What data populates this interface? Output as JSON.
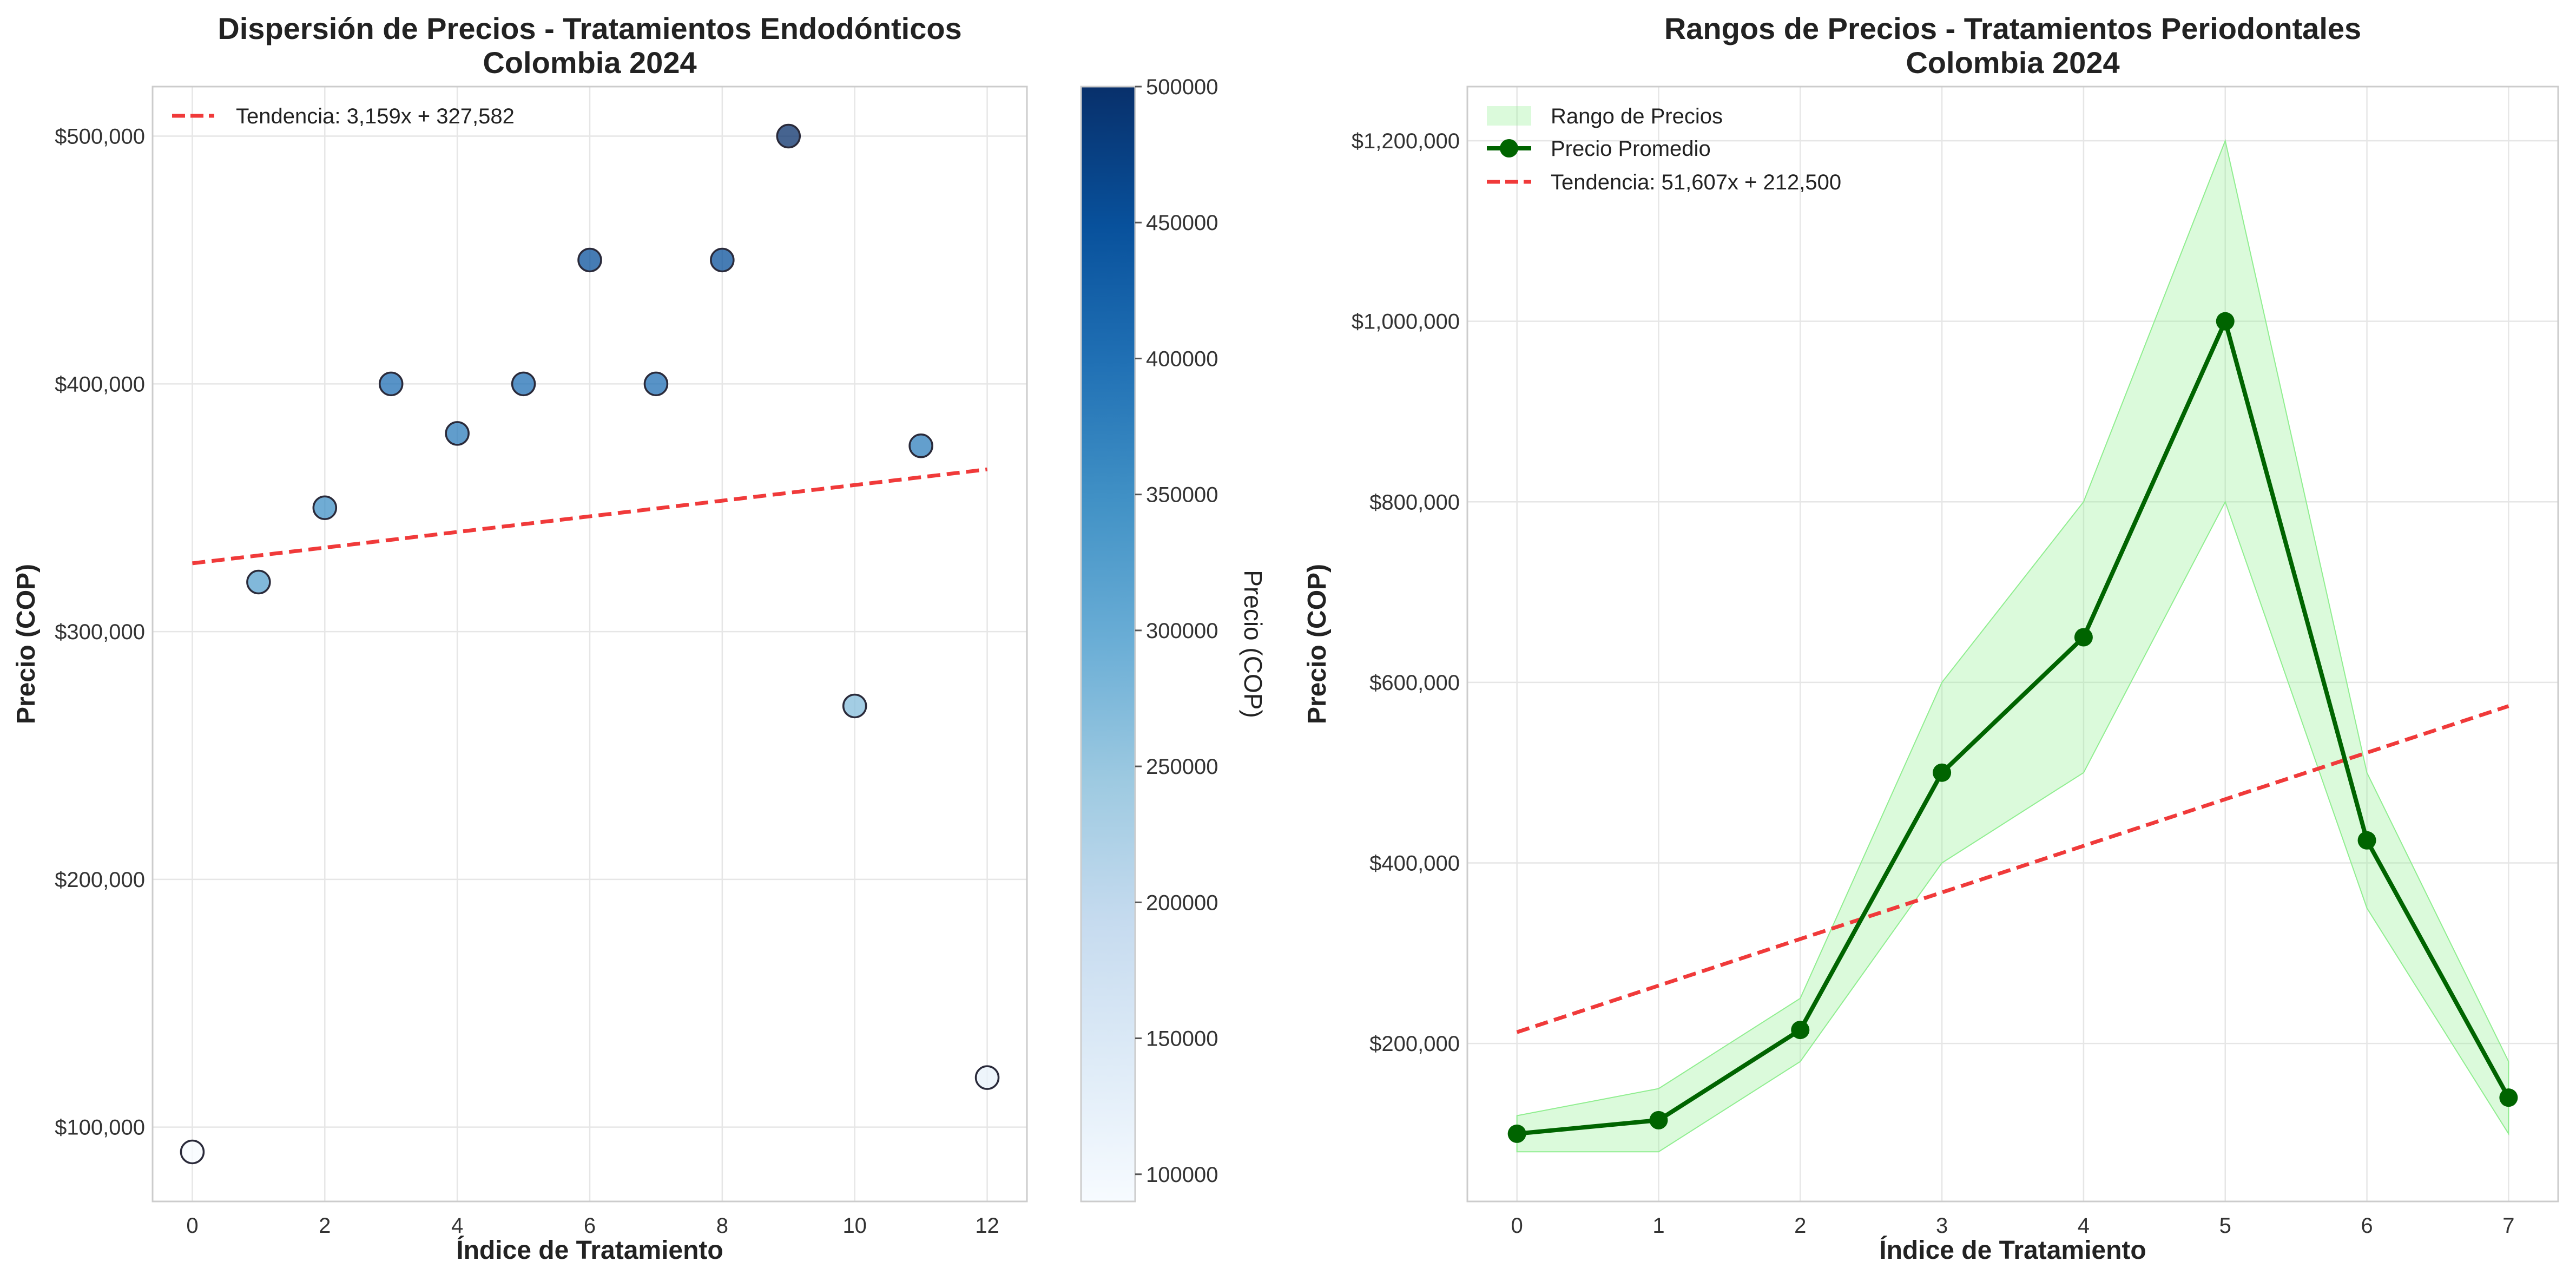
{
  "chart_data": [
    {
      "type": "scatter",
      "title_line1": "Dispersión de Precios - Tratamientos Endodónticos",
      "title_line2": "Colombia 2024",
      "xlabel": "Índice de Tratamiento",
      "ylabel": "Precio (COP)",
      "x": [
        0,
        1,
        2,
        3,
        4,
        5,
        6,
        7,
        8,
        9,
        10,
        11,
        12
      ],
      "y": [
        90000,
        320000,
        350000,
        400000,
        380000,
        400000,
        450000,
        400000,
        450000,
        500000,
        270000,
        375000,
        120000
      ],
      "xlim": [
        -0.6,
        12.6
      ],
      "ylim": [
        70000,
        520000
      ],
      "xticks": [
        0,
        2,
        4,
        6,
        8,
        10,
        12
      ],
      "xtick_labels": [
        "0",
        "2",
        "4",
        "6",
        "8",
        "10",
        "12"
      ],
      "yticks": [
        100000,
        200000,
        300000,
        400000,
        500000
      ],
      "ytick_labels": [
        "$100,000",
        "$200,000",
        "$300,000",
        "$400,000",
        "$500,000"
      ],
      "trend": {
        "slope": 3159,
        "intercept": 327582,
        "x_range": [
          0,
          12
        ]
      },
      "legend": {
        "trend_label": "Tendencia: 3,159x + 327,582",
        "position": "top-left"
      },
      "colorbar": {
        "label": "Precio (COP)",
        "range": [
          90000,
          500000
        ],
        "ticks": [
          100000,
          150000,
          200000,
          250000,
          300000,
          350000,
          400000,
          450000,
          500000
        ],
        "tick_labels": [
          "100000",
          "150000",
          "200000",
          "250000",
          "300000",
          "350000",
          "400000",
          "450000",
          "500000"
        ]
      },
      "colors": {
        "trend": "#f03a3a",
        "marker_edge": "#2a2a3a"
      }
    },
    {
      "type": "line",
      "title_line1": "Rangos de Precios - Tratamientos Periodontales",
      "title_line2": "Colombia 2024",
      "xlabel": "Índice de Tratamiento",
      "ylabel": "Precio (COP)",
      "x": [
        0,
        1,
        2,
        3,
        4,
        5,
        6,
        7
      ],
      "series": [
        {
          "name": "Precio Promedio",
          "values": [
            100000,
            115000,
            215000,
            500000,
            650000,
            1000000,
            425000,
            140000
          ]
        },
        {
          "name": "Rango de Precios (mín)",
          "values": [
            80000,
            80000,
            180000,
            400000,
            500000,
            800000,
            350000,
            100000
          ]
        },
        {
          "name": "Rango de Precios (máx)",
          "values": [
            120000,
            150000,
            250000,
            600000,
            800000,
            1200000,
            500000,
            180000
          ]
        }
      ],
      "xlim": [
        -0.35,
        7.35
      ],
      "ylim": [
        25000,
        1260000
      ],
      "xticks": [
        0,
        1,
        2,
        3,
        4,
        5,
        6,
        7
      ],
      "xtick_labels": [
        "0",
        "1",
        "2",
        "3",
        "4",
        "5",
        "6",
        "7"
      ],
      "yticks": [
        200000,
        400000,
        600000,
        800000,
        1000000,
        1200000
      ],
      "ytick_labels": [
        "$200,000",
        "$400,000",
        "$600,000",
        "$800,000",
        "$1,000,000",
        "$1,200,000"
      ],
      "trend": {
        "slope": 51607,
        "intercept": 212500,
        "x_range": [
          0,
          7
        ]
      },
      "legend": {
        "range_label": "Rango de Precios",
        "mean_label": "Precio Promedio",
        "trend_label": "Tendencia: 51,607x + 212,500",
        "position": "top-left"
      },
      "colors": {
        "line": "#006400",
        "band": "#90ee90",
        "trend": "#f03a3a"
      }
    }
  ]
}
